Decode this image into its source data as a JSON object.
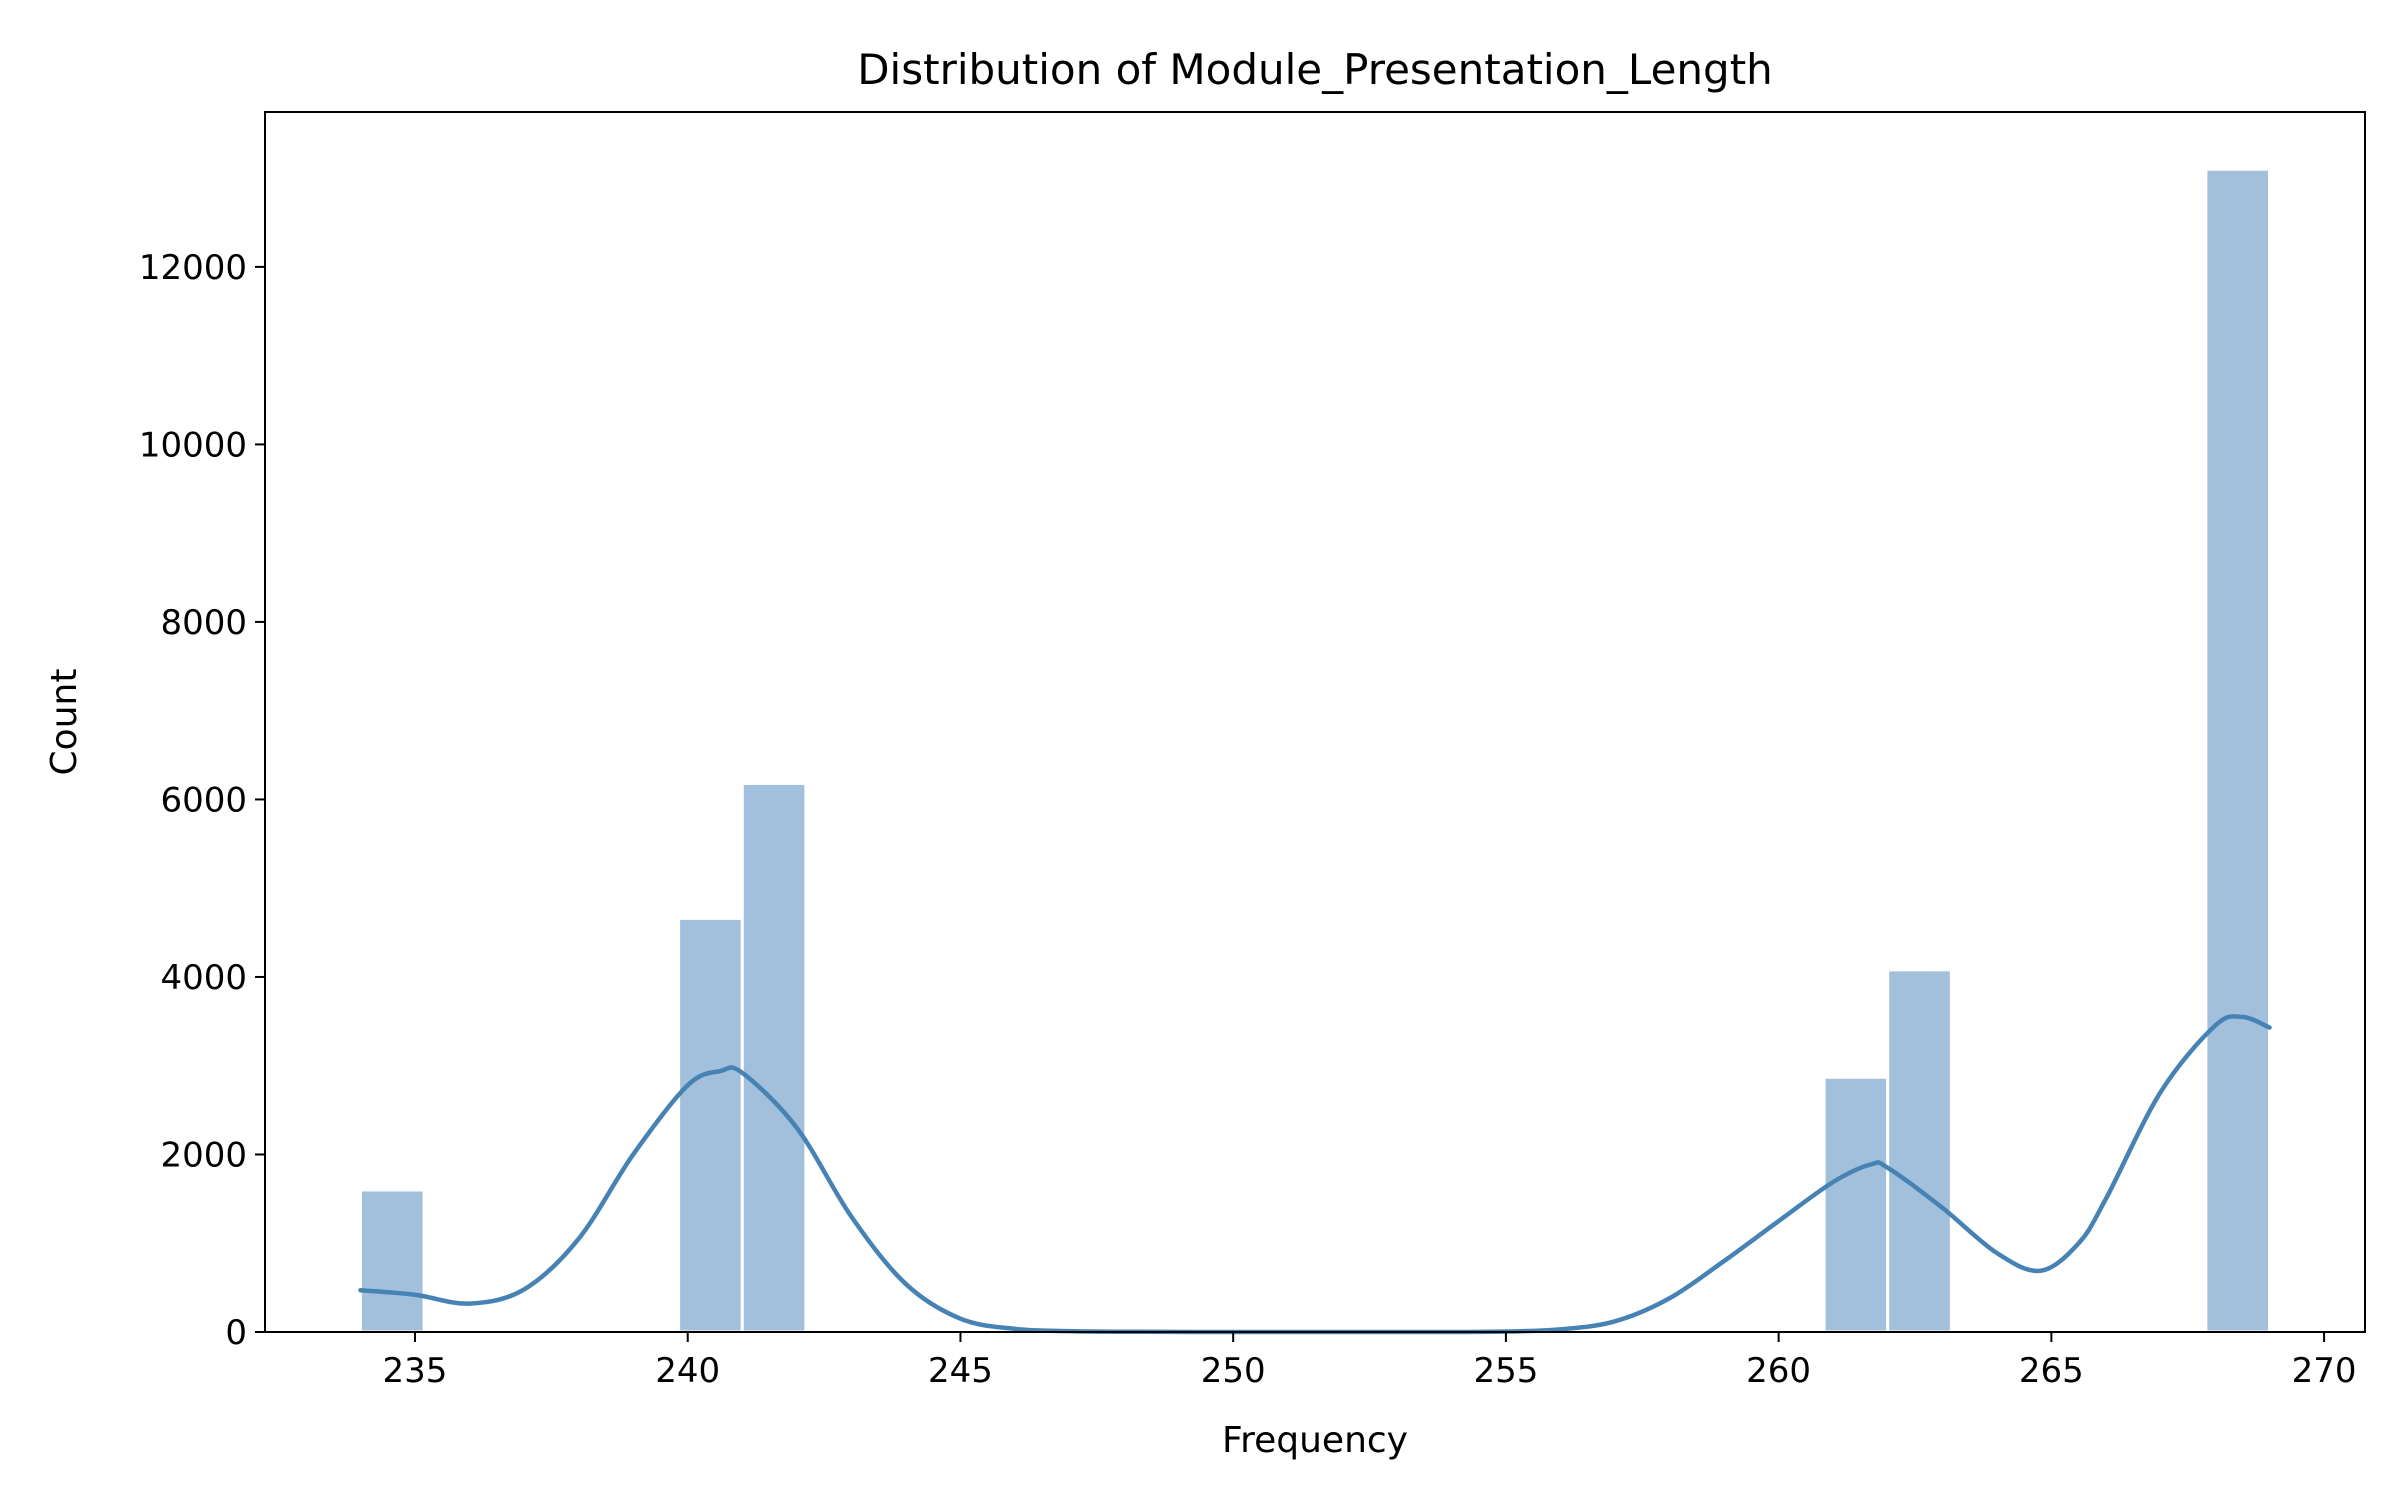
{
  "chart_data": {
    "type": "bar",
    "title": "Distribution of Module_Presentation_Length",
    "xlabel": "Frequency",
    "ylabel": "Count",
    "xlim": [
      232.25,
      270.75
    ],
    "ylim": [
      0,
      13745
    ],
    "x_ticks": [
      235,
      240,
      245,
      250,
      255,
      260,
      265,
      270
    ],
    "y_ticks": [
      0,
      2000,
      4000,
      6000,
      8000,
      10000,
      12000
    ],
    "grid": false,
    "legend": "none",
    "bin_width": 1.1667,
    "bins": [
      {
        "x0": 234.0,
        "x1": 235.1667,
        "count": 1600
      },
      {
        "x0": 239.8333,
        "x1": 241.0,
        "count": 4660
      },
      {
        "x0": 241.0,
        "x1": 242.1667,
        "count": 6180
      },
      {
        "x0": 260.8333,
        "x1": 262.0,
        "count": 2870
      },
      {
        "x0": 262.0,
        "x1": 263.1667,
        "count": 4080
      },
      {
        "x0": 267.8333,
        "x1": 269.0,
        "count": 13100
      }
    ],
    "kde": {
      "x": [
        234.0,
        235.0,
        236.0,
        237.0,
        238.0,
        239.0,
        240.0,
        240.6,
        241.0,
        242.0,
        243.0,
        244.0,
        245.0,
        246.0,
        247.0,
        248.0,
        250.0,
        252.0,
        254.0,
        255.0,
        256.0,
        257.0,
        258.0,
        259.0,
        260.0,
        261.0,
        261.7,
        262.0,
        263.0,
        264.0,
        264.8,
        265.5,
        266.0,
        267.0,
        268.0,
        268.5,
        269.0
      ],
      "y": [
        470,
        420,
        320,
        480,
        1050,
        2000,
        2780,
        2940,
        2920,
        2300,
        1300,
        540,
        150,
        35,
        10,
        3,
        0,
        0,
        0,
        5,
        30,
        120,
        380,
        800,
        1250,
        1690,
        1890,
        1850,
        1400,
        890,
        690,
        1000,
        1500,
        2700,
        3450,
        3550,
        3430
      ]
    },
    "colors": {
      "bar_fill": "#a2c0dc",
      "kde_line": "#4682b4",
      "axes": "#000000"
    }
  }
}
